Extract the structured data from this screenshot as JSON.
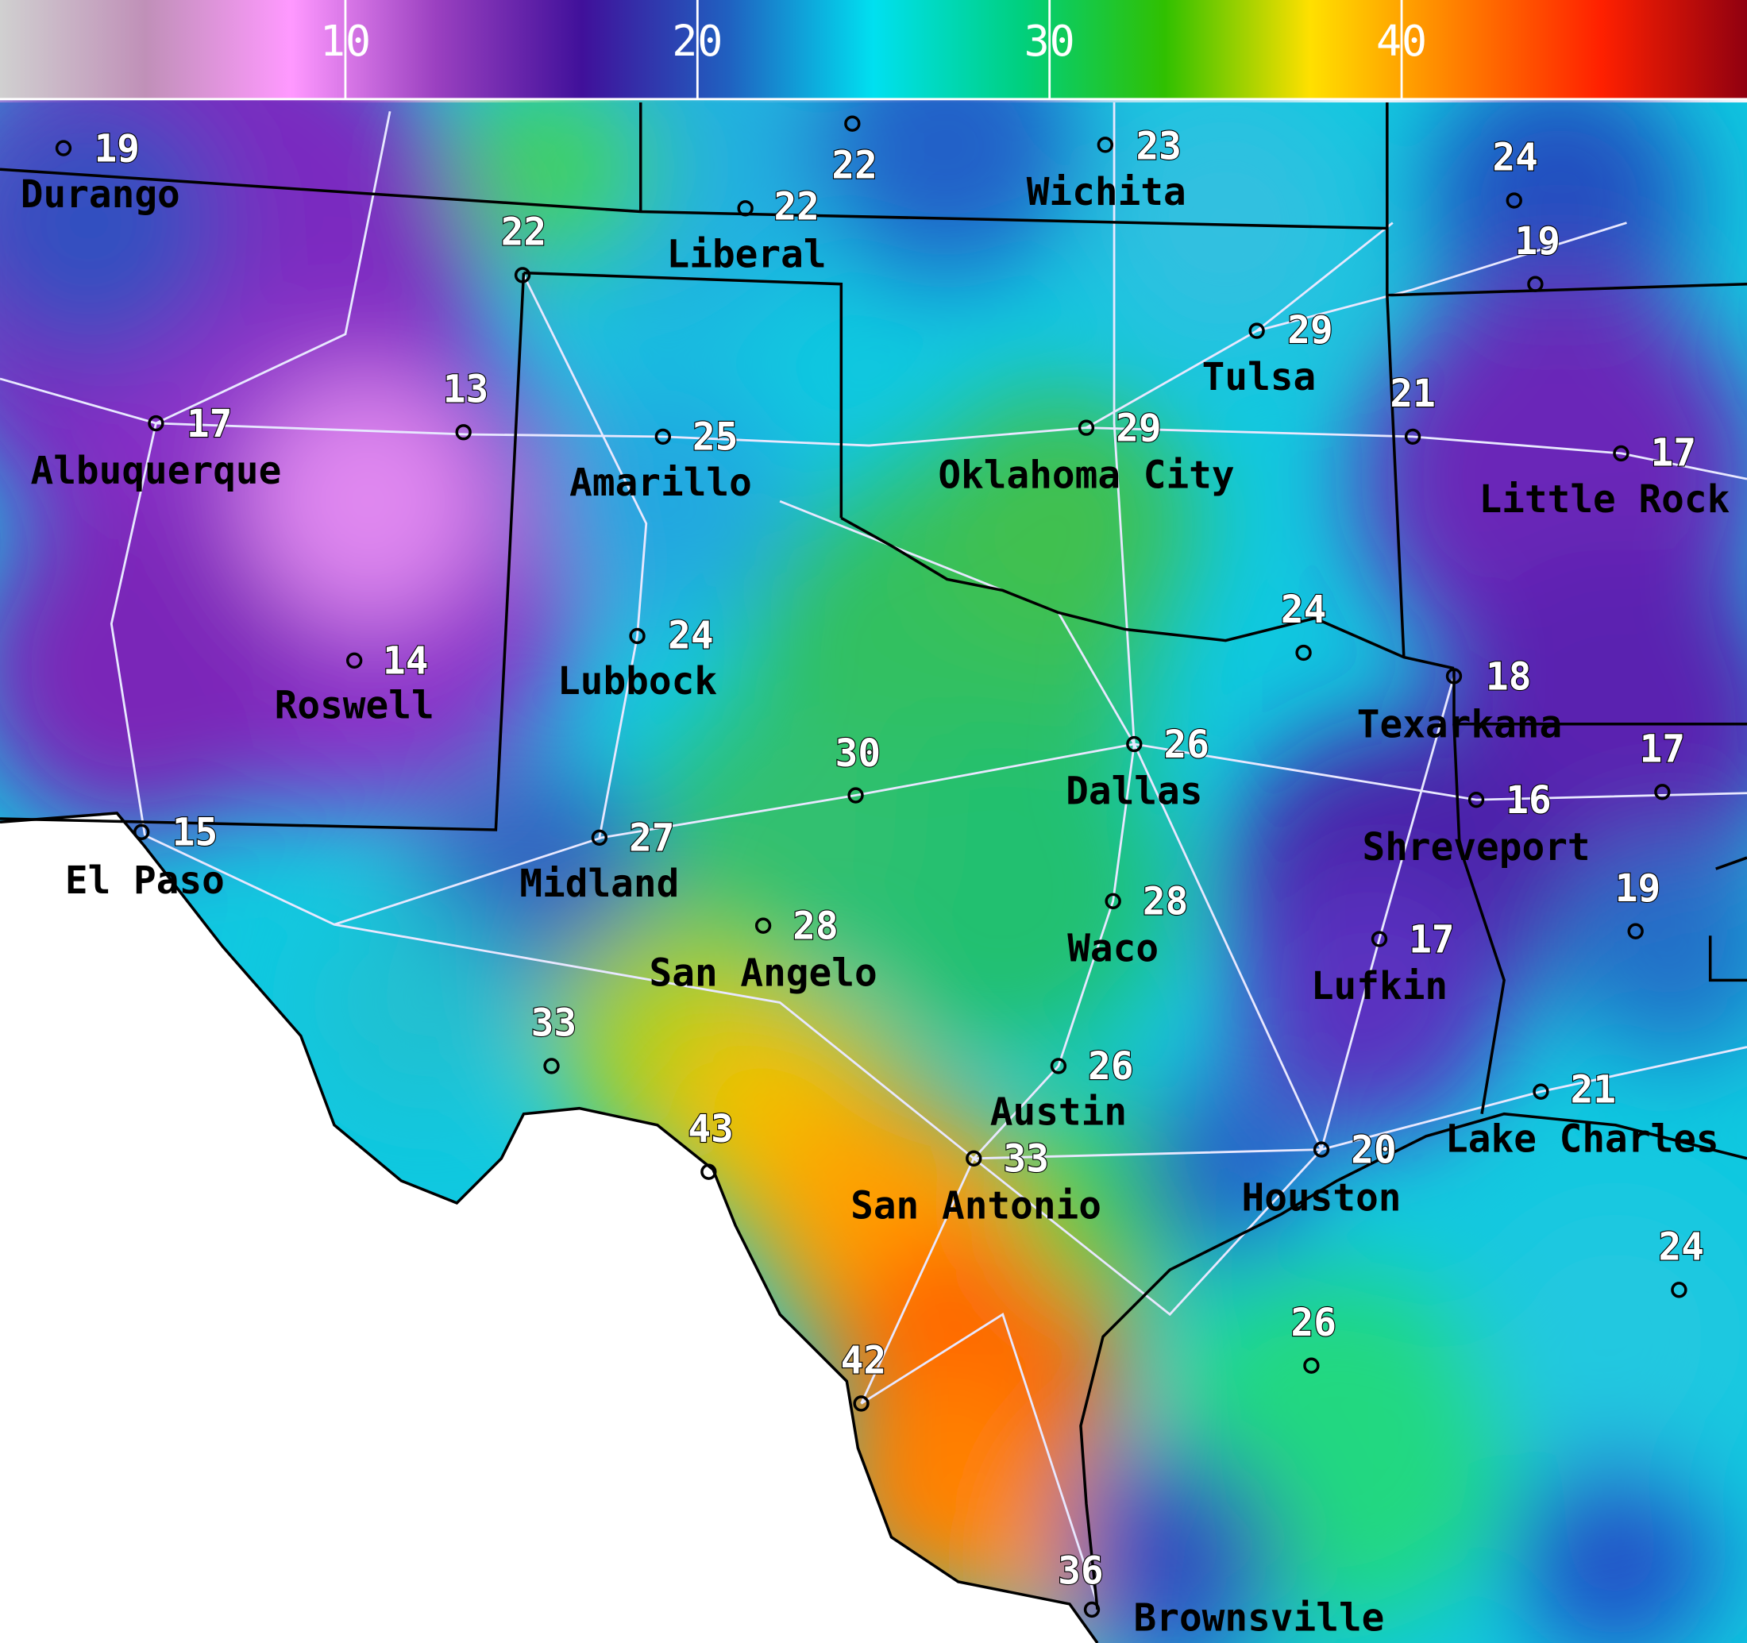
{
  "colorbar": {
    "ticks": [
      "10",
      "20",
      "30",
      "40"
    ],
    "range": [
      0,
      50
    ],
    "stops": [
      "#d0d0d0",
      "#c090b8",
      "#ff99ff",
      "#9a40c0",
      "#40109a",
      "#2060c0",
      "#00e0f0",
      "#00d080",
      "#30c000",
      "#ffe000",
      "#ff8000",
      "#ff2000",
      "#900010"
    ]
  },
  "stations": [
    {
      "name": "Durango",
      "value": "19"
    },
    {
      "name": "",
      "value": "22"
    },
    {
      "name": "Liberal",
      "value": "22"
    },
    {
      "name": "Wichita",
      "value": "23"
    },
    {
      "name": "",
      "value": "24"
    },
    {
      "name": "",
      "value": "19"
    },
    {
      "name": "",
      "value": "22"
    },
    {
      "name": "Tulsa",
      "value": "29"
    },
    {
      "name": "Albuquerque",
      "value": "17"
    },
    {
      "name": "",
      "value": "13"
    },
    {
      "name": "Amarillo",
      "value": "25"
    },
    {
      "name": "Oklahoma City",
      "value": "29"
    },
    {
      "name": "",
      "value": "21"
    },
    {
      "name": "Little Rock",
      "value": "17"
    },
    {
      "name": "Lubbock",
      "value": "24"
    },
    {
      "name": "Roswell",
      "value": "14"
    },
    {
      "name": "",
      "value": "24"
    },
    {
      "name": "Texarkana",
      "value": "18"
    },
    {
      "name": "",
      "value": "30"
    },
    {
      "name": "Dallas",
      "value": "26"
    },
    {
      "name": "",
      "value": "17"
    },
    {
      "name": "Shreveport",
      "value": "16"
    },
    {
      "name": "El Paso",
      "value": "15"
    },
    {
      "name": "Midland",
      "value": "27"
    },
    {
      "name": "San Angelo",
      "value": "28"
    },
    {
      "name": "Waco",
      "value": "28"
    },
    {
      "name": "",
      "value": "19"
    },
    {
      "name": "Lufkin",
      "value": "17"
    },
    {
      "name": "",
      "value": "33"
    },
    {
      "name": "Austin",
      "value": "26"
    },
    {
      "name": "Lake Charles",
      "value": "21"
    },
    {
      "name": "",
      "value": "43"
    },
    {
      "name": "San Antonio",
      "value": "33"
    },
    {
      "name": "Houston",
      "value": "20"
    },
    {
      "name": "",
      "value": "24"
    },
    {
      "name": "",
      "value": "26"
    },
    {
      "name": "",
      "value": "42"
    },
    {
      "name": "Brownsville",
      "value": "36"
    }
  ]
}
